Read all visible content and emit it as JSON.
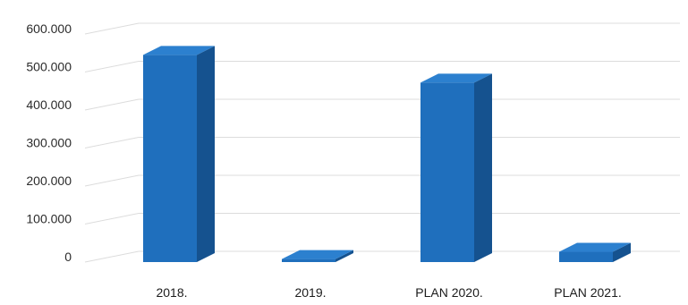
{
  "chart_data": {
    "type": "bar",
    "style": "3d-column",
    "categories": [
      "2018.",
      "2019.",
      "PLAN 2020.",
      "PLAN 2021."
    ],
    "values": [
      545000,
      8000,
      472000,
      27000
    ],
    "ylim": [
      0,
      600000
    ],
    "yticks": [
      0,
      100000,
      200000,
      300000,
      400000,
      500000,
      600000
    ],
    "ytick_labels": [
      "0",
      "100.000",
      "200.000",
      "300.000",
      "400.000",
      "500.000",
      "600.000"
    ],
    "title": "",
    "xlabel": "",
    "ylabel": "",
    "grid": true,
    "legend": "none",
    "colors": {
      "bar_front": "#1f6fbd",
      "bar_side": "#15528f",
      "bar_top": "#2c80cf",
      "grid": "#dcdcdc"
    }
  }
}
